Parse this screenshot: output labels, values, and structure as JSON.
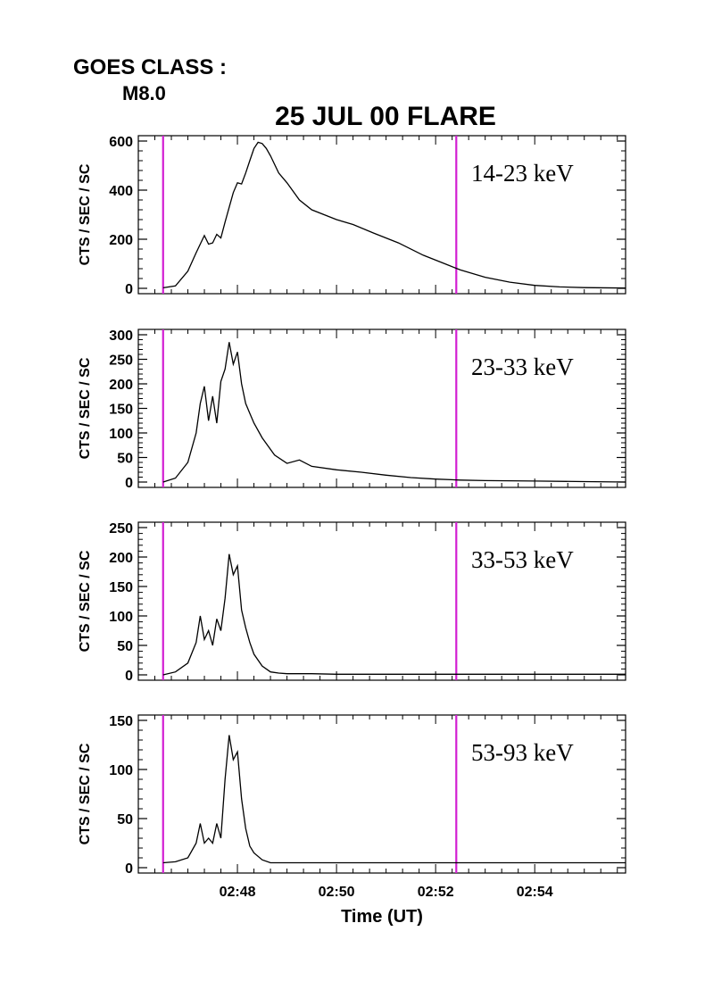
{
  "header": {
    "goes_label": "GOES CLASS :",
    "goes_value": "M8.0",
    "title": "25 JUL 00 FLARE"
  },
  "colors": {
    "marker": "#d21ed2",
    "trace": "#000000"
  },
  "chart_data": {
    "type": "line",
    "title": "25 JUL 00 FLARE",
    "xlabel": "Time (UT)",
    "xlim": [
      "02:46:00",
      "02:55:50"
    ],
    "x_ticks": [
      "02:48",
      "02:50",
      "02:52",
      "02:54"
    ],
    "vertical_markers": [
      "02:46:30",
      "02:52:25"
    ],
    "panels": [
      {
        "label": "14-23 keV",
        "ylabel": "CTS / SEC / SC",
        "ylim": [
          0,
          600
        ],
        "y_ticks": [
          0,
          200,
          400,
          600
        ],
        "x": [
          "02:46:30",
          "02:46:45",
          "02:47:00",
          "02:47:10",
          "02:47:20",
          "02:47:25",
          "02:47:30",
          "02:47:35",
          "02:47:40",
          "02:47:45",
          "02:47:50",
          "02:47:55",
          "02:48:00",
          "02:48:05",
          "02:48:10",
          "02:48:15",
          "02:48:20",
          "02:48:25",
          "02:48:30",
          "02:48:35",
          "02:48:40",
          "02:48:50",
          "02:49:00",
          "02:49:15",
          "02:49:30",
          "02:50:00",
          "02:50:20",
          "02:50:45",
          "02:51:15",
          "02:51:45",
          "02:52:15",
          "02:52:30",
          "02:53:00",
          "02:53:30",
          "02:54:00",
          "02:54:30",
          "02:55:00",
          "02:55:50"
        ],
        "values": [
          2,
          10,
          70,
          145,
          215,
          180,
          185,
          220,
          205,
          270,
          330,
          390,
          430,
          425,
          470,
          520,
          570,
          595,
          590,
          570,
          540,
          470,
          430,
          360,
          320,
          280,
          260,
          225,
          185,
          135,
          95,
          75,
          45,
          25,
          12,
          6,
          3,
          1
        ]
      },
      {
        "label": "23-33 keV",
        "ylabel": "CTS / SEC / SC",
        "ylim": [
          0,
          300
        ],
        "y_ticks": [
          0,
          50,
          100,
          150,
          200,
          250,
          300
        ],
        "x": [
          "02:46:30",
          "02:46:45",
          "02:47:00",
          "02:47:10",
          "02:47:15",
          "02:47:20",
          "02:47:25",
          "02:47:30",
          "02:47:35",
          "02:47:40",
          "02:47:45",
          "02:47:50",
          "02:47:55",
          "02:48:00",
          "02:48:05",
          "02:48:10",
          "02:48:15",
          "02:48:20",
          "02:48:30",
          "02:48:45",
          "02:49:00",
          "02:49:15",
          "02:49:30",
          "02:50:00",
          "02:50:30",
          "02:51:00",
          "02:51:30",
          "02:52:00",
          "02:52:30",
          "02:53:00",
          "02:54:00",
          "02:55:00",
          "02:55:50"
        ],
        "values": [
          0,
          8,
          40,
          100,
          160,
          195,
          125,
          175,
          120,
          205,
          230,
          285,
          240,
          265,
          200,
          160,
          140,
          120,
          90,
          55,
          38,
          45,
          32,
          25,
          20,
          14,
          9,
          6,
          4,
          3,
          2,
          1,
          0
        ]
      },
      {
        "label": "33-53 keV",
        "ylabel": "CTS / SEC / SC",
        "ylim": [
          0,
          250
        ],
        "y_ticks": [
          0,
          50,
          100,
          150,
          200,
          250
        ],
        "x": [
          "02:46:30",
          "02:46:45",
          "02:47:00",
          "02:47:10",
          "02:47:15",
          "02:47:20",
          "02:47:25",
          "02:47:30",
          "02:47:35",
          "02:47:40",
          "02:47:45",
          "02:47:50",
          "02:47:55",
          "02:48:00",
          "02:48:05",
          "02:48:10",
          "02:48:15",
          "02:48:20",
          "02:48:30",
          "02:48:40",
          "02:48:50",
          "02:49:00",
          "02:49:30",
          "02:50:00",
          "02:51:00",
          "02:52:00",
          "02:53:00",
          "02:54:00",
          "02:55:50"
        ],
        "values": [
          0,
          5,
          20,
          55,
          100,
          60,
          75,
          50,
          95,
          75,
          130,
          205,
          170,
          185,
          110,
          80,
          55,
          35,
          15,
          5,
          3,
          2,
          2,
          1,
          1,
          1,
          1,
          1,
          1
        ]
      },
      {
        "label": "53-93 keV",
        "ylabel": "CTS / SEC / SC",
        "ylim": [
          0,
          150
        ],
        "y_ticks": [
          0,
          50,
          100,
          150
        ],
        "x": [
          "02:46:30",
          "02:46:45",
          "02:47:00",
          "02:47:10",
          "02:47:15",
          "02:47:20",
          "02:47:25",
          "02:47:30",
          "02:47:35",
          "02:47:40",
          "02:47:45",
          "02:47:50",
          "02:47:55",
          "02:48:00",
          "02:48:05",
          "02:48:10",
          "02:48:15",
          "02:48:20",
          "02:48:30",
          "02:48:40",
          "02:48:50",
          "02:49:00",
          "02:50:00",
          "02:51:00",
          "02:52:00",
          "02:53:00",
          "02:54:00",
          "02:55:00",
          "02:55:50"
        ],
        "values": [
          5,
          6,
          10,
          25,
          45,
          25,
          30,
          25,
          45,
          30,
          90,
          135,
          110,
          118,
          70,
          40,
          22,
          15,
          8,
          5,
          5,
          5,
          5,
          5,
          5,
          5,
          5,
          5,
          5
        ]
      }
    ]
  }
}
